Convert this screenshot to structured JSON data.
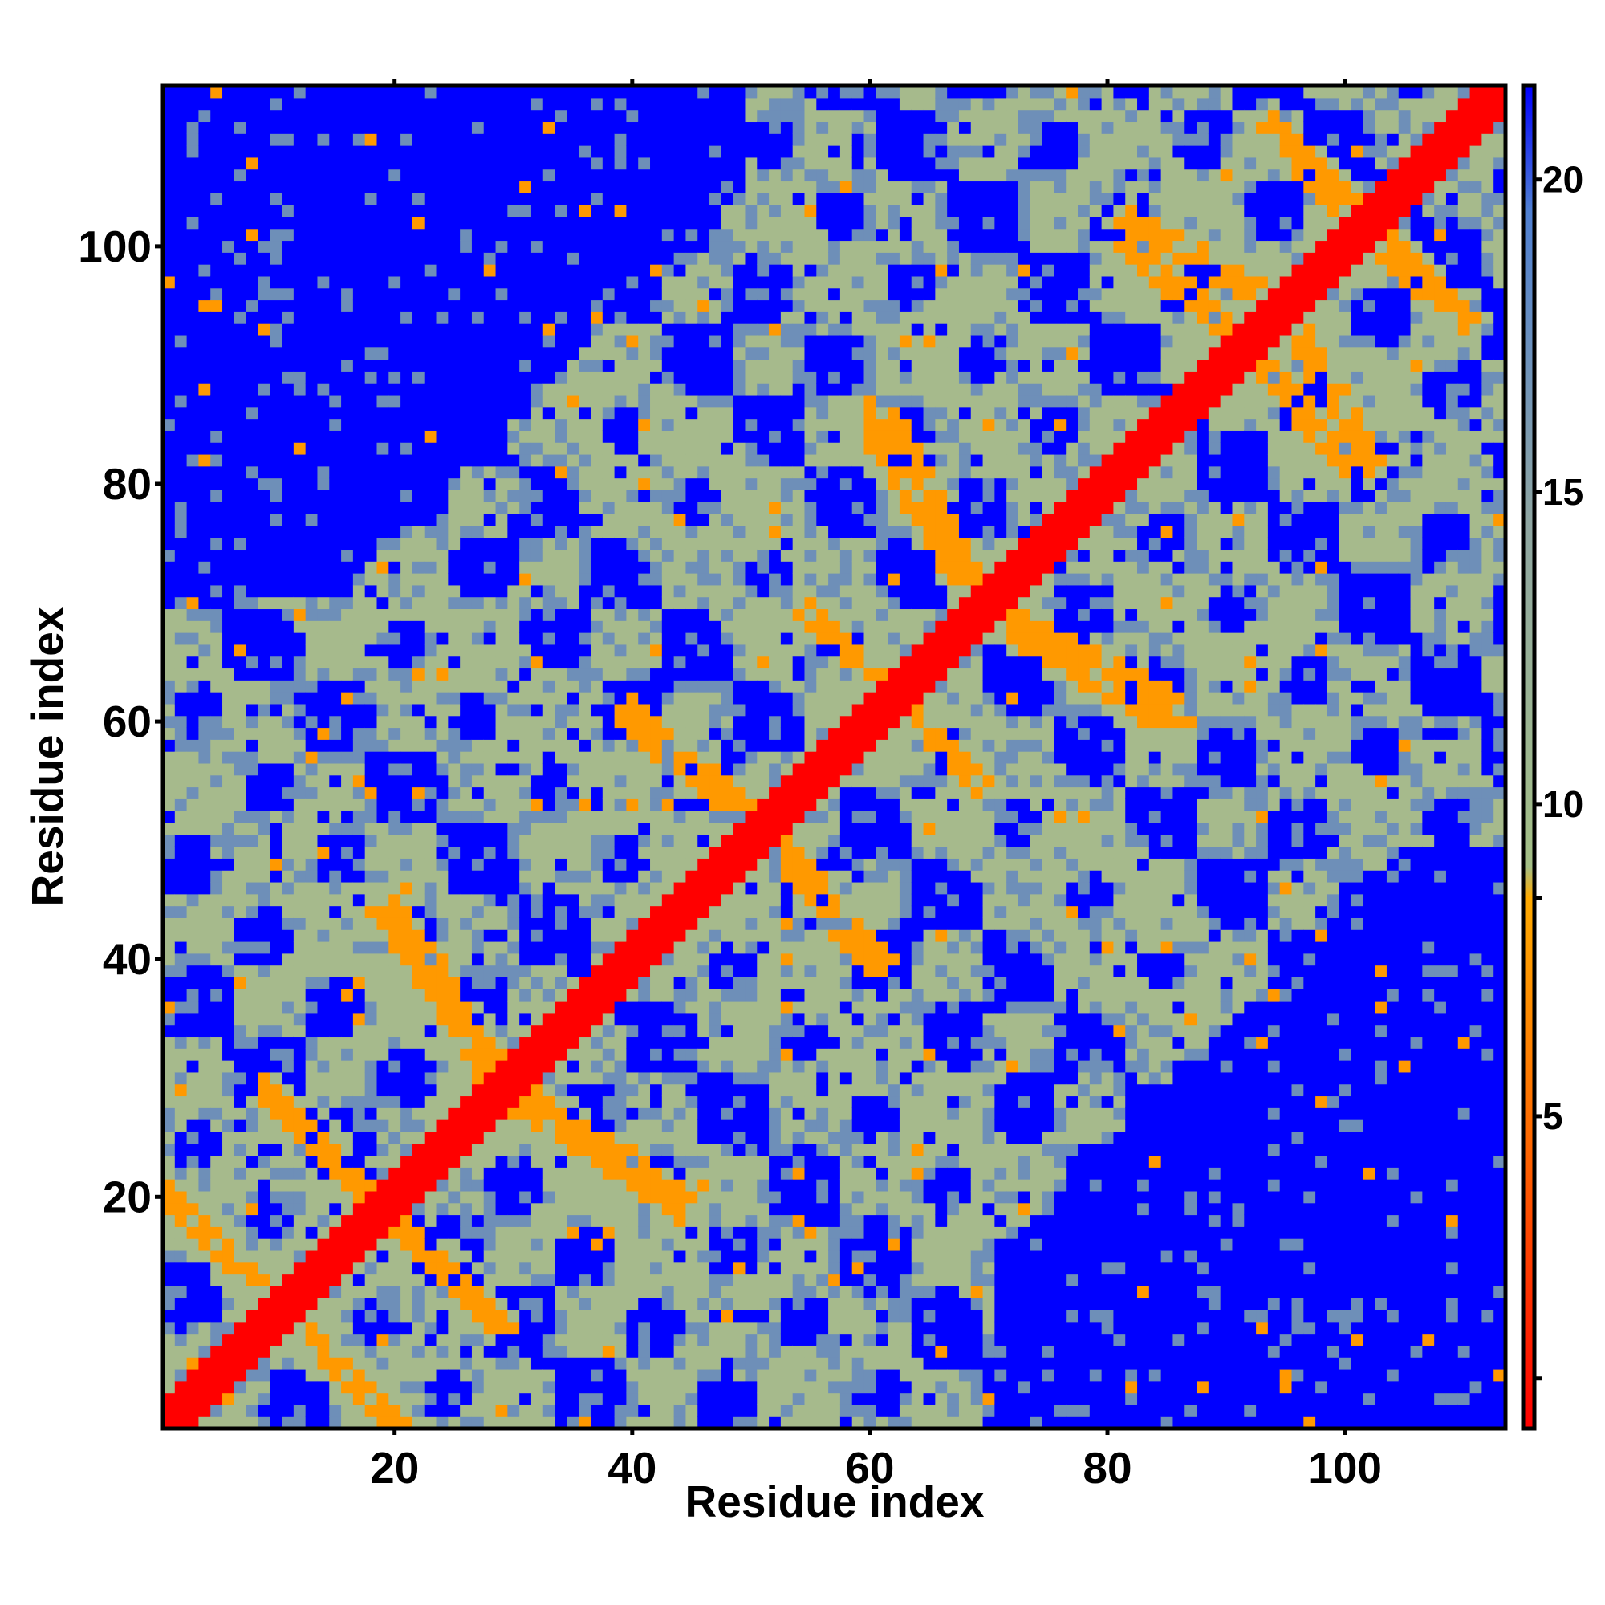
{
  "chart_data": {
    "type": "heatmap",
    "title": "",
    "xlabel": "Residue index",
    "ylabel": "Residue index",
    "n_residues": 113,
    "xlim": [
      0.5,
      113.5
    ],
    "ylim": [
      0.5,
      113.5
    ],
    "x_ticks": [
      20,
      40,
      60,
      80,
      100
    ],
    "y_ticks": [
      20,
      40,
      60,
      80,
      100
    ],
    "colorbar": {
      "ticks": [
        5,
        10,
        15,
        20
      ],
      "range": [
        0,
        21.5
      ],
      "stops": [
        {
          "value": 0,
          "color": "#ff0000"
        },
        {
          "value": 4.5,
          "color": "#ff6600"
        },
        {
          "value": 8.5,
          "color": "#ffaa00"
        },
        {
          "value": 9.0,
          "color": "#a4bf86"
        },
        {
          "value": 14.5,
          "color": "#8fa6a2"
        },
        {
          "value": 19.5,
          "color": "#4f7fd1"
        },
        {
          "value": 21.5,
          "color": "#0000ff"
        }
      ]
    },
    "colors": {
      "near": "#ff0000",
      "contact": "#ff9900",
      "mid": "#a6ba8c",
      "far": "#6e8fb8",
      "outside": "#0000ff"
    },
    "description_note": "symmetric residue distance map with red diagonal",
    "secondary_contact_bands": [
      {
        "x": [
          1,
          20
        ],
        "y": [
          20,
          1
        ]
      },
      {
        "x": [
          9,
          20
        ],
        "y": [
          29,
          18
        ]
      },
      {
        "x": [
          20,
          29
        ],
        "y": [
          44,
          30
        ]
      },
      {
        "x": [
          28,
          44
        ],
        "y": [
          30,
          19
        ]
      },
      {
        "x": [
          40,
          52
        ],
        "y": [
          61,
          50
        ]
      },
      {
        "x": [
          52,
          60
        ],
        "y": [
          50,
          40
        ]
      },
      {
        "x": [
          55,
          69
        ],
        "y": [
          69,
          55
        ]
      },
      {
        "x": [
          69,
          85
        ],
        "y": [
          70,
          62
        ]
      },
      {
        "x": [
          60,
          69
        ],
        "y": [
          85,
          70
        ]
      },
      {
        "x": [
          82,
          95
        ],
        "y": [
          102,
          95
        ]
      },
      {
        "x": [
          94,
          106
        ],
        "y": [
          110,
          97
        ]
      },
      {
        "x": [
          93,
          100
        ],
        "y": [
          90,
          82
        ]
      }
    ]
  }
}
